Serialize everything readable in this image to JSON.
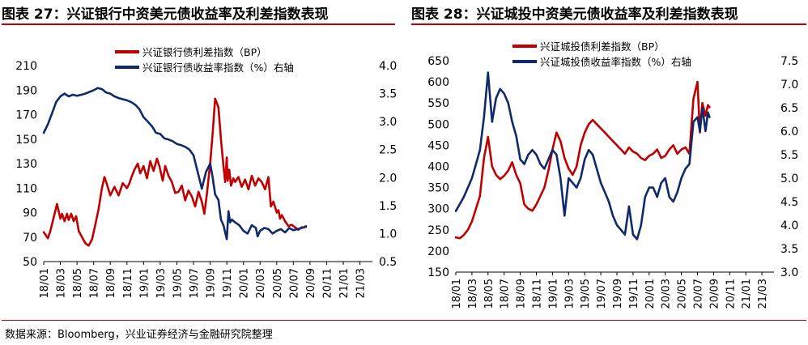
{
  "chart_data": [
    {
      "type": "line",
      "title": "图表 27：兴证银行中资美元债收益率及利差指数表现",
      "x_ticks": [
        "18/01",
        "18/03",
        "18/05",
        "18/07",
        "18/09",
        "18/11",
        "19/01",
        "19/03",
        "19/05",
        "19/07",
        "19/09",
        "19/11",
        "20/01",
        "20/03",
        "20/05",
        "20/07",
        "20/09",
        "20/11",
        "21/01",
        "21/03"
      ],
      "ylim_left": [
        50,
        210
      ],
      "yticks_left": [
        "50",
        "70",
        "90",
        "110",
        "130",
        "150",
        "170",
        "190",
        "210"
      ],
      "ylim_right": [
        0.5,
        4.0
      ],
      "yticks_right": [
        "0.5",
        "1.0",
        "1.5",
        "2.0",
        "2.5",
        "3.0",
        "3.5",
        "4.0"
      ],
      "colors": {
        "spread": "#c00000",
        "yield": "#0f2a6b"
      },
      "series": [
        {
          "name": "兴证银行债利差指数（BP）",
          "axis": "left",
          "color": "#c00000",
          "x": [
            0,
            0.2,
            0.5,
            0.8,
            1.2,
            1.6,
            2.0,
            2.2,
            2.5,
            2.8,
            3.0,
            3.3,
            3.6,
            3.9,
            4.2,
            4.6,
            5.0,
            5.4,
            5.8,
            6.2,
            6.6,
            7.0,
            7.3,
            7.6,
            8.0,
            8.5,
            9.0,
            9.5,
            10.0,
            10.3,
            10.6,
            10.9,
            11.3,
            11.6,
            12.0,
            12.4,
            12.8,
            13.2,
            13.6,
            13.9,
            14.3,
            14.6,
            15.0,
            15.4,
            15.8,
            16.2,
            16.6,
            17.0,
            17.4,
            17.8,
            18.2,
            18.6,
            19.0,
            19.3,
            19.6,
            20.0,
            20.3,
            20.6,
            21.0,
            21.3,
            21.6,
            21.8,
            22.0,
            22.1,
            22.3,
            22.5,
            22.8,
            23.0,
            23.4,
            23.8,
            24.2,
            24.6,
            25.0,
            25.4,
            25.8,
            26.2,
            26.6,
            27.0,
            27.3,
            27.6,
            28.0,
            28.2,
            28.4,
            28.6,
            29.0,
            29.4,
            29.8,
            30.2,
            30.6,
            31.0,
            31.3,
            31.5
          ],
          "values": [
            74,
            72,
            69,
            75,
            86,
            97,
            85,
            89,
            83,
            89,
            84,
            89,
            83,
            87,
            75,
            70,
            65,
            63,
            68,
            80,
            93,
            110,
            119,
            113,
            104,
            111,
            104,
            114,
            110,
            114,
            120,
            125,
            130,
            122,
            128,
            118,
            132,
            124,
            134,
            128,
            116,
            128,
            120,
            115,
            106,
            107,
            112,
            100,
            108,
            103,
            95,
            107,
            99,
            89,
            105,
            130,
            155,
            183,
            176,
            150,
            128,
            115,
            135,
            116,
            125,
            112,
            118,
            115,
            119,
            111,
            117,
            109,
            120,
            112,
            118,
            115,
            109,
            119,
            95,
            99,
            90,
            92,
            85,
            88,
            83,
            79,
            80,
            78,
            76,
            78,
            78,
            79
          ]
        },
        {
          "name": "兴证银行债收益率指数（%）右轴",
          "axis": "right",
          "color": "#0f2a6b",
          "x": [
            0,
            0.5,
            1.0,
            1.5,
            2.0,
            2.5,
            3.0,
            3.5,
            4.0,
            4.5,
            5.0,
            5.5,
            6.0,
            6.5,
            7.0,
            7.5,
            8.0,
            8.5,
            9.0,
            9.5,
            10.0,
            10.5,
            11.0,
            11.5,
            12.0,
            12.5,
            13.0,
            13.5,
            14.0,
            14.5,
            15.0,
            15.5,
            16.0,
            16.5,
            17.0,
            17.5,
            18.0,
            18.5,
            19.0,
            19.5,
            20.0,
            20.3,
            20.6,
            21.0,
            21.3,
            21.6,
            22.0,
            22.2,
            22.4,
            22.6,
            23.0,
            23.5,
            24.0,
            24.5,
            25.0,
            25.5,
            25.7,
            26.0,
            26.5,
            27.0,
            27.5,
            28.0,
            28.5,
            29.0,
            29.5,
            30.0,
            30.5,
            31.0,
            31.5
          ],
          "values": [
            2.8,
            2.95,
            3.15,
            3.35,
            3.45,
            3.5,
            3.45,
            3.48,
            3.46,
            3.48,
            3.5,
            3.53,
            3.56,
            3.6,
            3.58,
            3.52,
            3.5,
            3.45,
            3.42,
            3.4,
            3.38,
            3.35,
            3.3,
            3.22,
            3.08,
            3.0,
            2.92,
            2.8,
            2.78,
            2.7,
            2.68,
            2.65,
            2.6,
            2.58,
            2.55,
            2.5,
            2.4,
            2.1,
            1.8,
            2.1,
            2.25,
            2.0,
            1.7,
            1.6,
            1.25,
            1.15,
            0.9,
            1.4,
            1.2,
            1.25,
            1.2,
            1.15,
            1.05,
            1.0,
            1.15,
            1.1,
            0.95,
            1.05,
            1.1,
            1.08,
            1.0,
            1.05,
            1.08,
            1.02,
            1.1,
            1.06,
            1.08,
            1.1,
            1.12
          ]
        }
      ]
    },
    {
      "type": "line",
      "title": "图表 28：兴证城投中资美元债收益率及利差指数表现",
      "x_ticks": [
        "18/01",
        "18/03",
        "18/05",
        "18/07",
        "18/09",
        "18/11",
        "19/01",
        "19/03",
        "19/05",
        "19/07",
        "19/09",
        "19/11",
        "20/01",
        "20/03",
        "20/05",
        "20/07",
        "20/09",
        "20/11",
        "21/01",
        "21/03"
      ],
      "ylim_left": [
        150,
        650
      ],
      "yticks_left": [
        "150",
        "200",
        "250",
        "300",
        "350",
        "400",
        "450",
        "500",
        "550",
        "600",
        "650"
      ],
      "ylim_right": [
        3.0,
        7.5
      ],
      "yticks_right": [
        "3.0",
        "3.5",
        "4.0",
        "4.5",
        "5.0",
        "5.5",
        "6.0",
        "6.5",
        "7.0",
        "7.5"
      ],
      "colors": {
        "spread": "#c00000",
        "yield": "#0f2a6b"
      },
      "series": [
        {
          "name": "兴证城投债利差指数（BP）",
          "axis": "left",
          "color": "#c00000",
          "x": [
            0,
            0.5,
            1.0,
            1.5,
            2.0,
            2.5,
            3.0,
            3.5,
            4.0,
            4.5,
            5.0,
            5.5,
            6.0,
            6.5,
            7.0,
            7.5,
            8.0,
            8.5,
            9.0,
            9.5,
            10.0,
            10.5,
            11.0,
            11.5,
            12.0,
            12.5,
            13.0,
            13.5,
            14.0,
            14.5,
            15.0,
            15.5,
            16.0,
            16.5,
            17.0,
            17.5,
            18.0,
            18.5,
            19.0,
            19.5,
            20.0,
            20.5,
            21.0,
            21.5,
            22.0,
            22.5,
            23.0,
            23.5,
            24.0,
            24.5,
            25.0,
            25.5,
            26.0,
            26.5,
            27.0,
            27.5,
            28.0,
            28.5,
            29.0,
            29.5,
            30.0,
            30.3,
            30.6,
            31.0,
            31.3,
            31.5
          ],
          "values": [
            232,
            230,
            238,
            250,
            270,
            300,
            330,
            420,
            470,
            400,
            380,
            370,
            378,
            390,
            410,
            380,
            360,
            310,
            300,
            295,
            310,
            330,
            350,
            390,
            440,
            480,
            460,
            420,
            395,
            380,
            400,
            450,
            480,
            500,
            510,
            500,
            490,
            480,
            470,
            460,
            450,
            440,
            430,
            445,
            435,
            430,
            420,
            415,
            425,
            430,
            440,
            420,
            425,
            440,
            450,
            430,
            440,
            445,
            430,
            560,
            600,
            480,
            550,
            520,
            545,
            540
          ]
        },
        {
          "name": "兴证城投债收益率指数（%）右轴",
          "axis": "right",
          "color": "#0f2a6b",
          "x": [
            0,
            0.5,
            1.0,
            1.5,
            2.0,
            2.5,
            3.0,
            3.5,
            4.0,
            4.5,
            5.0,
            5.5,
            6.0,
            6.5,
            7.0,
            7.5,
            8.0,
            8.5,
            9.0,
            9.5,
            10.0,
            10.5,
            11.0,
            11.5,
            12.0,
            12.5,
            13.0,
            13.5,
            14.0,
            14.5,
            15.0,
            15.5,
            16.0,
            16.5,
            17.0,
            17.5,
            18.0,
            18.5,
            19.0,
            19.5,
            20.0,
            20.5,
            21.0,
            21.5,
            22.0,
            22.5,
            23.0,
            23.5,
            24.0,
            24.5,
            25.0,
            25.5,
            26.0,
            26.5,
            27.0,
            27.5,
            28.0,
            28.5,
            29.0,
            29.5,
            30.0,
            30.3,
            30.6,
            31.0,
            31.3,
            31.5
          ],
          "values": [
            4.3,
            4.45,
            4.6,
            4.8,
            5.0,
            5.3,
            5.6,
            6.3,
            7.25,
            6.2,
            6.7,
            6.9,
            6.8,
            6.6,
            6.2,
            5.9,
            5.4,
            5.3,
            5.5,
            5.6,
            5.5,
            5.3,
            5.2,
            5.4,
            5.6,
            5.5,
            5.0,
            4.2,
            5.0,
            4.9,
            4.8,
            5.0,
            5.4,
            5.6,
            5.5,
            5.2,
            4.9,
            4.7,
            4.5,
            4.2,
            4.0,
            3.9,
            3.8,
            4.4,
            3.8,
            3.7,
            4.0,
            4.6,
            4.8,
            4.8,
            4.6,
            4.9,
            5.0,
            4.6,
            4.5,
            4.7,
            5.0,
            5.2,
            5.3,
            6.2,
            6.3,
            6.0,
            6.5,
            6.0,
            6.4,
            6.3
          ]
        }
      ]
    }
  ],
  "source_note": "数据来源：Bloomberg，兴业证券经济与金融研究院整理"
}
